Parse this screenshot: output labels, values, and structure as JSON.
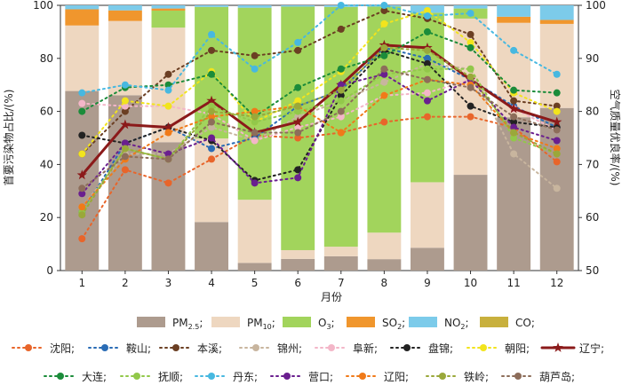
{
  "chart_data": {
    "type": "bar+line",
    "categories": [
      "1",
      "2",
      "3",
      "4",
      "5",
      "6",
      "7",
      "8",
      "9",
      "10",
      "11",
      "12"
    ],
    "xlabel": "月份",
    "ylabel_left": "首要污染物占比/(%)",
    "ylabel_right": "空气质量优良率/(%)",
    "ylim_left": [
      0,
      100
    ],
    "ylim_right": [
      50,
      100
    ],
    "left_ticks": [
      "0",
      "20",
      "40",
      "60",
      "80",
      "100"
    ],
    "right_ticks": [
      "50",
      "60",
      "70",
      "80",
      "90",
      "100"
    ],
    "stack_series": [
      {
        "name": "PM2.5;",
        "base": "PM",
        "sub": "2.5",
        "color": "#ad9b8e",
        "values": [
          67.7,
          66.1,
          48.4,
          18.3,
          2.9,
          4.4,
          5.4,
          4.3,
          8.6,
          36.1,
          57.8,
          61.3
        ]
      },
      {
        "name": "PM10;",
        "base": "PM",
        "sub": "10",
        "color": "#eed7c0",
        "values": [
          24.7,
          28.0,
          43.2,
          31.5,
          23.8,
          3.3,
          3.6,
          10.0,
          24.7,
          58.9,
          35.6,
          31.7
        ]
      },
      {
        "name": "O3;",
        "base": "O",
        "sub": "3",
        "color": "#a2d45c",
        "values": [
          0,
          0,
          6.4,
          49.6,
          72.4,
          91.8,
          90.4,
          85.2,
          63.9,
          3.8,
          0,
          0
        ]
      },
      {
        "name": "SO2;",
        "base": "SO",
        "sub": "2",
        "color": "#f0962d",
        "values": [
          6.1,
          4.0,
          0.8,
          0,
          0,
          0,
          0,
          0,
          0,
          0,
          2.3,
          1.5
        ]
      },
      {
        "name": "NO2;",
        "base": "NO",
        "sub": "2",
        "color": "#7ccbea",
        "values": [
          1.5,
          1.9,
          1.2,
          0.6,
          0.9,
          0.5,
          0.6,
          0.5,
          2.8,
          1.2,
          4.3,
          5.5
        ]
      },
      {
        "name": "CO;",
        "base": "CO",
        "sub": "",
        "color": "#c8b03d",
        "values": [
          0,
          0,
          0,
          0,
          0,
          0,
          0,
          0,
          0,
          0,
          0,
          0
        ]
      }
    ],
    "line_series": [
      {
        "name": "沈阳;",
        "color": "#e8652a",
        "values": [
          56,
          69,
          66.5,
          71,
          75.5,
          75,
          76,
          78,
          79,
          79,
          77,
          70.5
        ]
      },
      {
        "name": "鞍山;",
        "color": "#2a6cb5",
        "values": [
          61,
          74,
          77,
          73,
          75,
          81,
          84,
          92,
          90,
          86,
          81,
          77
        ]
      },
      {
        "name": "本溪;",
        "color": "#6b3f23",
        "values": [
          72,
          80,
          87,
          91.5,
          90.5,
          91.5,
          95.5,
          99,
          97.5,
          94.5,
          82,
          81
        ]
      },
      {
        "name": "锦州;",
        "color": "#c8b59e",
        "values": [
          62,
          72,
          72,
          77,
          74.5,
          79,
          82,
          85.5,
          89,
          88,
          72,
          65.5
        ]
      },
      {
        "name": "阜新;",
        "color": "#f3b6c8",
        "values": [
          81.5,
          81,
          81,
          79.5,
          74.5,
          77,
          79,
          83,
          83.5,
          86,
          80.5,
          76.5
        ]
      },
      {
        "name": "盘锦;",
        "color": "#222222",
        "values": [
          75.5,
          74,
          77,
          74.5,
          67,
          69,
          83,
          91.5,
          89,
          81,
          78,
          77
        ]
      },
      {
        "name": "朝阳;",
        "color": "#f2e41d",
        "values": [
          72,
          82,
          81,
          87.5,
          78,
          82,
          87.5,
          96.5,
          99,
          93,
          83.5,
          80
        ]
      },
      {
        "name": "辽宁;",
        "color": "#8b1a1a",
        "values": [
          68,
          77.5,
          77,
          82,
          76,
          78,
          85,
          92.5,
          92,
          86,
          80.5,
          78
        ]
      },
      {
        "name": "大连;",
        "color": "#1b8c3a",
        "values": [
          80,
          84.5,
          85,
          87,
          79,
          84.5,
          88,
          90.5,
          95,
          92,
          84,
          83.5
        ]
      },
      {
        "name": "抚顺;",
        "color": "#92c84a",
        "values": [
          61,
          73,
          71,
          81,
          78,
          80,
          82,
          87,
          88,
          88,
          75,
          72
        ]
      },
      {
        "name": "丹东;",
        "color": "#47b8e0",
        "values": [
          83.5,
          85,
          84,
          94.5,
          88,
          93,
          100,
          100,
          98,
          98.5,
          91.5,
          87
        ]
      },
      {
        "name": "营口;",
        "color": "#6a1f8f",
        "values": [
          64.5,
          74,
          72,
          75,
          66.5,
          67.5,
          85,
          87,
          82,
          86,
          77,
          74.5
        ]
      },
      {
        "name": "辽阳;",
        "color": "#f07a19",
        "values": [
          62,
          71,
          76,
          79,
          80,
          81,
          76,
          83,
          86,
          85,
          76,
          73
        ]
      },
      {
        "name": "铁岭;",
        "color": "#9aa83a",
        "values": [
          60.5,
          73,
          71,
          80,
          79,
          81,
          84,
          92,
          91.5,
          86.5,
          76,
          72
        ]
      },
      {
        "name": "葫芦岛;",
        "color": "#8d6d5a",
        "values": [
          65.5,
          71.5,
          71,
          78,
          76,
          76,
          80,
          88,
          86,
          84.5,
          79,
          76.5
        ]
      }
    ]
  }
}
